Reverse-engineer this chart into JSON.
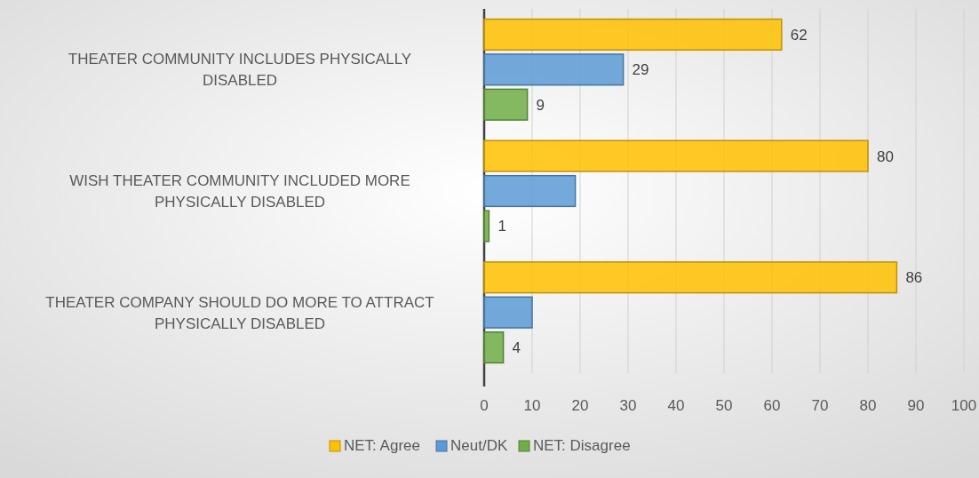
{
  "chart_data": {
    "type": "bar",
    "orientation": "horizontal",
    "categories": [
      "THEATER COMMUNITY INCLUDES PHYSICALLY DISABLED",
      "WISH THEATER COMMUNITY INCLUDED MORE PHYSICALLY DISABLED",
      "THEATER COMPANY SHOULD DO MORE TO ATTRACT PHYSICALLY DISABLED"
    ],
    "series": [
      {
        "name": "NET: Agree",
        "color": "#ffc000",
        "values": [
          62,
          80,
          86
        ],
        "value_labels": [
          "62",
          "80",
          "86"
        ]
      },
      {
        "name": "Neut/DK",
        "color": "#5b9bd5",
        "values": [
          29,
          19,
          10
        ],
        "value_labels": [
          "29",
          null,
          null
        ]
      },
      {
        "name": "NET: Disagree",
        "color": "#70ad47",
        "values": [
          9,
          1,
          4
        ],
        "value_labels": [
          "9",
          "1",
          "4"
        ]
      }
    ],
    "xlim": [
      0,
      100
    ],
    "xticks": [
      0,
      10,
      20,
      30,
      40,
      50,
      60,
      70,
      80,
      90,
      100
    ],
    "grid": "x",
    "legend": "bottom"
  }
}
